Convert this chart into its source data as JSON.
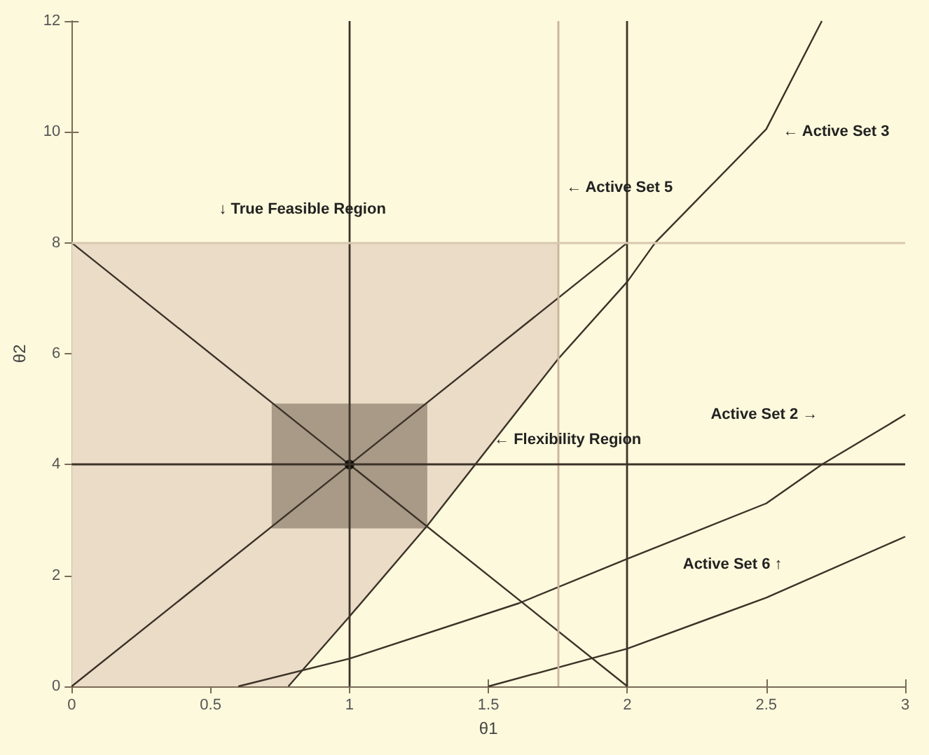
{
  "chart_data": {
    "type": "line",
    "xlabel": "θ1",
    "ylabel": "θ2",
    "xlim": [
      0,
      3
    ],
    "ylim": [
      0,
      12
    ],
    "xticks": [
      0,
      0.5,
      1,
      1.5,
      2,
      2.5,
      3
    ],
    "yticks": [
      0,
      2,
      4,
      6,
      8,
      10,
      12
    ],
    "grid": false,
    "marker": "none",
    "line_style": "solid",
    "series": [
      {
        "type": "area",
        "color": "#eadcc6",
        "x": [
          0,
          0,
          1.75,
          1.75,
          1.28,
          1,
          0.78
        ],
        "values": [
          0,
          8,
          8,
          5.9,
          2.9,
          1.26,
          0
        ]
      },
      {
        "type": "area",
        "color": "#a89a86",
        "x": [
          0.72,
          0.72,
          1.28,
          1.28
        ],
        "values": [
          2.85,
          5.1,
          5.1,
          2.85
        ]
      },
      {
        "color": "#3c3228",
        "x": [
          0,
          1,
          2
        ],
        "values": [
          8,
          4,
          0
        ]
      },
      {
        "color": "#3c3228",
        "x": [
          0,
          1,
          2
        ],
        "values": [
          0,
          4,
          8
        ]
      },
      {
        "color": "#3c3228",
        "x": [
          0.78,
          1,
          1.28,
          1.75,
          2,
          2.1,
          2.5,
          2.7
        ],
        "values": [
          0,
          1.26,
          2.9,
          5.9,
          7.3,
          8,
          10.05,
          12
        ]
      },
      {
        "color": "#3c3228",
        "x": [
          0.6,
          1,
          1.61,
          2,
          2.5,
          2.7,
          3
        ],
        "values": [
          0,
          0.5,
          1.5,
          2.3,
          3.3,
          4,
          4.9
        ]
      },
      {
        "color": "#3c3228",
        "x": [
          1.5,
          2,
          2.5,
          3
        ],
        "values": [
          0,
          0.68,
          1.6,
          2.7
        ]
      },
      {
        "type": "scatter",
        "marker": "circle",
        "color": "#000000",
        "x": [
          1
        ],
        "values": [
          4
        ]
      }
    ],
    "ref_lines": [
      {
        "axis": "x",
        "value": 1,
        "color": "#3c3228"
      },
      {
        "axis": "x",
        "value": 2,
        "color": "#3c3228"
      },
      {
        "axis": "x",
        "value": 1.75,
        "color": "#c8b49c"
      },
      {
        "axis": "y",
        "value": 4,
        "color": "#3c3228"
      },
      {
        "axis": "y",
        "value": 8,
        "color": "#d8c8b0"
      }
    ],
    "annotations": [
      "↓ True Feasible Region",
      "← Flexibility Region",
      "← Active Set 5",
      "← Active Set 3",
      "Active Set 2 →",
      "Active Set 6 ↑"
    ]
  }
}
